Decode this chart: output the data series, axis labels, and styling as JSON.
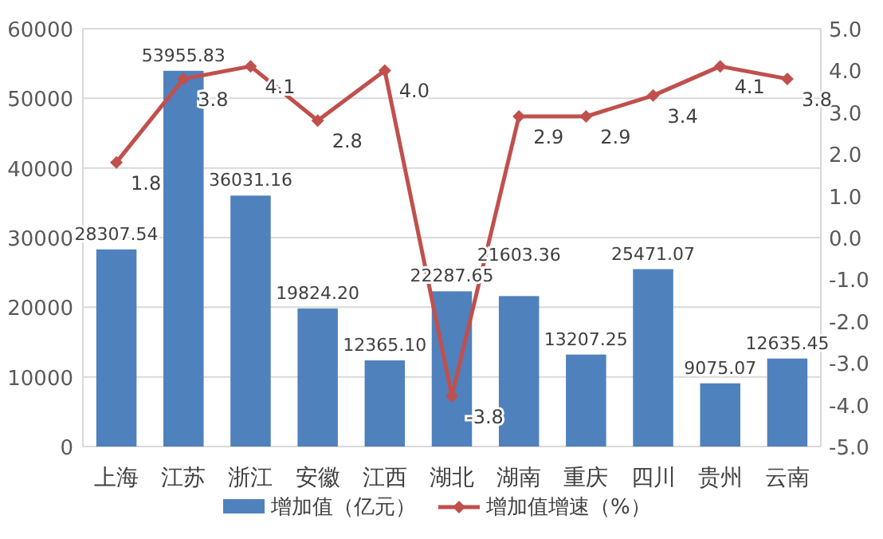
{
  "chart_data": {
    "type": "bar",
    "categories": [
      "上海",
      "江苏",
      "浙江",
      "安徽",
      "江西",
      "湖北",
      "湖南",
      "重庆",
      "四川",
      "贵州",
      "云南"
    ],
    "series": [
      {
        "name": "增加值（亿元）",
        "color": "#4f81bd",
        "values": [
          28307.54,
          53955.83,
          36031.16,
          19824.2,
          12365.1,
          22287.65,
          21603.36,
          13207.25,
          25471.07,
          9075.07,
          12635.45
        ],
        "value_labels": [
          "28307.54",
          "53955.83",
          "36031.16",
          "19824.20",
          "12365.10",
          "22287.65",
          "21603.36",
          "13207.25",
          "25471.07",
          "9075.07",
          "12635.45"
        ]
      },
      {
        "name": "增加值增速（%）",
        "type": "line",
        "axis": "y2",
        "color": "#c0504d",
        "marker": "diamond",
        "values": [
          1.8,
          3.8,
          4.1,
          2.8,
          4.0,
          -3.8,
          2.9,
          2.9,
          3.4,
          4.1,
          3.8
        ],
        "value_labels": [
          "1.8",
          "3.8",
          "4.1",
          "2.8",
          "4.0",
          "-3.8",
          "2.9",
          "2.9",
          "3.4",
          "4.1",
          "3.8"
        ]
      }
    ],
    "ylim": [
      0,
      60000
    ],
    "yticks": [
      0,
      10000,
      20000,
      30000,
      40000,
      50000,
      60000
    ],
    "y2lim": [
      -5,
      5
    ],
    "y2ticks": [
      {
        "value": -5,
        "label": "-5.0"
      },
      {
        "value": -4,
        "label": "-4.0"
      },
      {
        "value": -3,
        "label": "-3.0"
      },
      {
        "value": -2,
        "label": "-2.0"
      },
      {
        "value": -1,
        "label": "-1.0"
      },
      {
        "value": 0,
        "label": "0.0"
      },
      {
        "value": 1,
        "label": "1.0"
      },
      {
        "value": 2,
        "label": "2.0"
      },
      {
        "value": 3,
        "label": "3.0"
      },
      {
        "value": 4,
        "label": "4.0"
      },
      {
        "value": 5,
        "label": "5.0"
      }
    ],
    "grid": "y",
    "legend": "bottom"
  }
}
